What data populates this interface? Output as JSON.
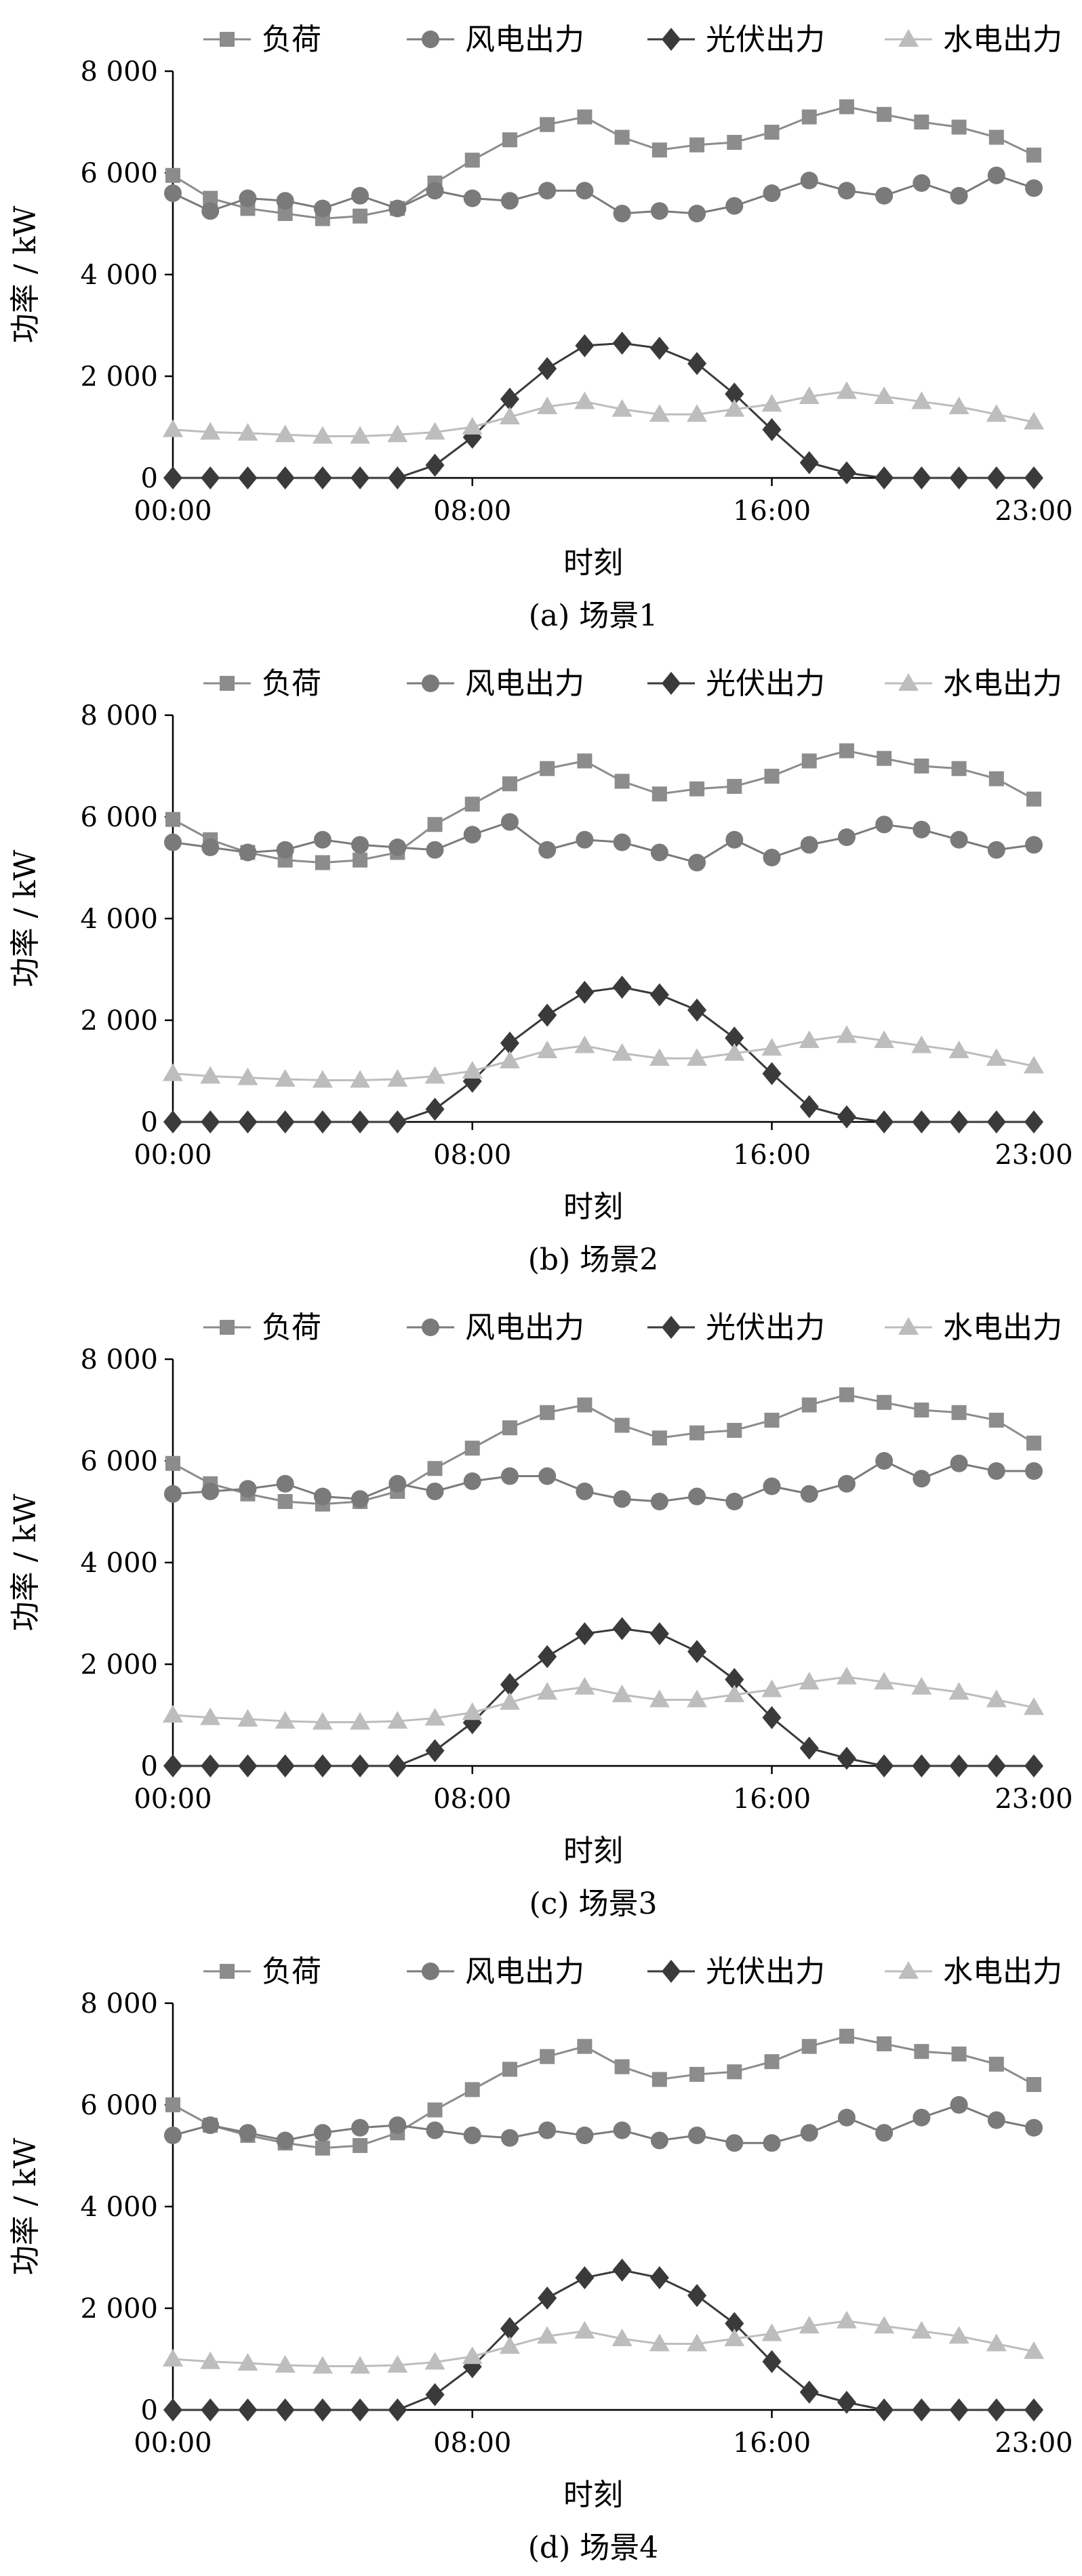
{
  "figure": {
    "ylabel": "功率 / kW",
    "xlabel": "时刻",
    "legend": [
      "负荷",
      "风电出力",
      "光伏出力",
      "水电出力"
    ]
  },
  "chart_data": [
    {
      "type": "line",
      "caption": "(a)  场景1",
      "xlabel": "时刻",
      "ylabel": "功率 / kW",
      "x": [
        0,
        1,
        2,
        3,
        4,
        5,
        6,
        7,
        8,
        9,
        10,
        11,
        12,
        13,
        14,
        15,
        16,
        17,
        18,
        19,
        20,
        21,
        22,
        23
      ],
      "x_tick_labels": [
        "00:00",
        "08:00",
        "16:00",
        "23:00"
      ],
      "x_tick_positions": [
        0,
        8,
        16,
        23
      ],
      "y_tick_labels": [
        "0",
        "2 000",
        "4 000",
        "6 000",
        "8 000"
      ],
      "ylim": [
        0,
        8000
      ],
      "grid": false,
      "legend_position": "top",
      "series": [
        {
          "name": "负荷",
          "marker": "square",
          "color": "#8c8c8c",
          "values": [
            5950,
            5500,
            5300,
            5200,
            5100,
            5150,
            5300,
            5800,
            6250,
            6650,
            6950,
            7100,
            6700,
            6450,
            6550,
            6600,
            6800,
            7100,
            7300,
            7150,
            7000,
            6900,
            6700,
            6350
          ]
        },
        {
          "name": "风电出力",
          "marker": "circle",
          "color": "#7a7a7a",
          "values": [
            5600,
            5250,
            5500,
            5450,
            5300,
            5550,
            5300,
            5650,
            5500,
            5450,
            5650,
            5650,
            5200,
            5250,
            5200,
            5350,
            5600,
            5850,
            5650,
            5550,
            5800,
            5550,
            5950,
            5700
          ]
        },
        {
          "name": "光伏出力",
          "marker": "diamond",
          "color": "#3a3a3a",
          "values": [
            0,
            0,
            0,
            0,
            0,
            0,
            0,
            250,
            800,
            1550,
            2150,
            2600,
            2650,
            2550,
            2250,
            1650,
            950,
            300,
            100,
            0,
            0,
            0,
            0,
            0
          ]
        },
        {
          "name": "水电出力",
          "marker": "triangle",
          "color": "#bdbdbd",
          "values": [
            950,
            900,
            880,
            850,
            820,
            820,
            850,
            900,
            1000,
            1200,
            1400,
            1500,
            1350,
            1250,
            1250,
            1350,
            1450,
            1600,
            1700,
            1600,
            1500,
            1400,
            1250,
            1100
          ]
        }
      ]
    },
    {
      "type": "line",
      "caption": "(b)  场景2",
      "xlabel": "时刻",
      "ylabel": "功率 / kW",
      "x": [
        0,
        1,
        2,
        3,
        4,
        5,
        6,
        7,
        8,
        9,
        10,
        11,
        12,
        13,
        14,
        15,
        16,
        17,
        18,
        19,
        20,
        21,
        22,
        23
      ],
      "x_tick_labels": [
        "00:00",
        "08:00",
        "16:00",
        "23:00"
      ],
      "x_tick_positions": [
        0,
        8,
        16,
        23
      ],
      "y_tick_labels": [
        "0",
        "2 000",
        "4 000",
        "6 000",
        "8 000"
      ],
      "ylim": [
        0,
        8000
      ],
      "grid": false,
      "legend_position": "top",
      "series": [
        {
          "name": "负荷",
          "marker": "square",
          "color": "#8c8c8c",
          "values": [
            5950,
            5550,
            5300,
            5150,
            5100,
            5150,
            5300,
            5850,
            6250,
            6650,
            6950,
            7100,
            6700,
            6450,
            6550,
            6600,
            6800,
            7100,
            7300,
            7150,
            7000,
            6950,
            6750,
            6350
          ]
        },
        {
          "name": "风电出力",
          "marker": "circle",
          "color": "#7a7a7a",
          "values": [
            5500,
            5400,
            5300,
            5350,
            5550,
            5450,
            5400,
            5350,
            5650,
            5900,
            5350,
            5550,
            5500,
            5300,
            5100,
            5550,
            5200,
            5450,
            5600,
            5850,
            5750,
            5550,
            5350,
            5450
          ]
        },
        {
          "name": "光伏出力",
          "marker": "diamond",
          "color": "#3a3a3a",
          "values": [
            0,
            0,
            0,
            0,
            0,
            0,
            0,
            250,
            800,
            1550,
            2100,
            2550,
            2650,
            2500,
            2200,
            1650,
            950,
            300,
            100,
            0,
            0,
            0,
            0,
            0
          ]
        },
        {
          "name": "水电出力",
          "marker": "triangle",
          "color": "#bdbdbd",
          "values": [
            950,
            900,
            870,
            840,
            820,
            820,
            840,
            900,
            1000,
            1200,
            1400,
            1500,
            1350,
            1250,
            1250,
            1350,
            1450,
            1600,
            1700,
            1600,
            1500,
            1400,
            1250,
            1100
          ]
        }
      ]
    },
    {
      "type": "line",
      "caption": "(c)  场景3",
      "xlabel": "时刻",
      "ylabel": "功率 / kW",
      "x": [
        0,
        1,
        2,
        3,
        4,
        5,
        6,
        7,
        8,
        9,
        10,
        11,
        12,
        13,
        14,
        15,
        16,
        17,
        18,
        19,
        20,
        21,
        22,
        23
      ],
      "x_tick_labels": [
        "00:00",
        "08:00",
        "16:00",
        "23:00"
      ],
      "x_tick_positions": [
        0,
        8,
        16,
        23
      ],
      "y_tick_labels": [
        "0",
        "2 000",
        "4 000",
        "6 000",
        "8 000"
      ],
      "ylim": [
        0,
        8000
      ],
      "grid": false,
      "legend_position": "top",
      "series": [
        {
          "name": "负荷",
          "marker": "square",
          "color": "#8c8c8c",
          "values": [
            5950,
            5550,
            5350,
            5200,
            5150,
            5200,
            5400,
            5850,
            6250,
            6650,
            6950,
            7100,
            6700,
            6450,
            6550,
            6600,
            6800,
            7100,
            7300,
            7150,
            7000,
            6950,
            6800,
            6350
          ]
        },
        {
          "name": "风电出力",
          "marker": "circle",
          "color": "#7a7a7a",
          "values": [
            5350,
            5400,
            5450,
            5550,
            5300,
            5250,
            5550,
            5400,
            5600,
            5700,
            5700,
            5400,
            5250,
            5200,
            5300,
            5200,
            5500,
            5350,
            5550,
            6000,
            5650,
            5950,
            5800,
            5800
          ]
        },
        {
          "name": "光伏出力",
          "marker": "diamond",
          "color": "#3a3a3a",
          "values": [
            0,
            0,
            0,
            0,
            0,
            0,
            0,
            300,
            850,
            1600,
            2150,
            2600,
            2700,
            2600,
            2250,
            1700,
            950,
            350,
            150,
            0,
            0,
            0,
            0,
            0
          ]
        },
        {
          "name": "水电出力",
          "marker": "triangle",
          "color": "#bdbdbd",
          "values": [
            1000,
            950,
            920,
            880,
            860,
            860,
            880,
            940,
            1050,
            1250,
            1450,
            1550,
            1400,
            1300,
            1300,
            1400,
            1500,
            1650,
            1750,
            1650,
            1550,
            1450,
            1300,
            1150
          ]
        }
      ]
    },
    {
      "type": "line",
      "caption": "(d)  场景4",
      "xlabel": "时刻",
      "ylabel": "功率 / kW",
      "x": [
        0,
        1,
        2,
        3,
        4,
        5,
        6,
        7,
        8,
        9,
        10,
        11,
        12,
        13,
        14,
        15,
        16,
        17,
        18,
        19,
        20,
        21,
        22,
        23
      ],
      "x_tick_labels": [
        "00:00",
        "08:00",
        "16:00",
        "23:00"
      ],
      "x_tick_positions": [
        0,
        8,
        16,
        23
      ],
      "y_tick_labels": [
        "0",
        "2 000",
        "4 000",
        "6 000",
        "8 000"
      ],
      "ylim": [
        0,
        8000
      ],
      "grid": false,
      "legend_position": "top",
      "series": [
        {
          "name": "负荷",
          "marker": "square",
          "color": "#8c8c8c",
          "values": [
            6000,
            5600,
            5400,
            5250,
            5150,
            5200,
            5450,
            5900,
            6300,
            6700,
            6950,
            7150,
            6750,
            6500,
            6600,
            6650,
            6850,
            7150,
            7350,
            7200,
            7050,
            7000,
            6800,
            6400
          ]
        },
        {
          "name": "风电出力",
          "marker": "circle",
          "color": "#7a7a7a",
          "values": [
            5400,
            5600,
            5450,
            5300,
            5450,
            5550,
            5600,
            5500,
            5400,
            5350,
            5500,
            5400,
            5500,
            5300,
            5400,
            5250,
            5250,
            5450,
            5750,
            5450,
            5750,
            6000,
            5700,
            5550
          ]
        },
        {
          "name": "光伏出力",
          "marker": "diamond",
          "color": "#3a3a3a",
          "values": [
            0,
            0,
            0,
            0,
            0,
            0,
            0,
            300,
            850,
            1600,
            2200,
            2600,
            2750,
            2600,
            2250,
            1700,
            950,
            350,
            150,
            0,
            0,
            0,
            0,
            0
          ]
        },
        {
          "name": "水电出力",
          "marker": "triangle",
          "color": "#bdbdbd",
          "values": [
            1000,
            950,
            920,
            880,
            860,
            860,
            880,
            940,
            1050,
            1250,
            1450,
            1550,
            1400,
            1300,
            1300,
            1400,
            1500,
            1650,
            1750,
            1650,
            1550,
            1450,
            1300,
            1150
          ]
        }
      ]
    }
  ]
}
